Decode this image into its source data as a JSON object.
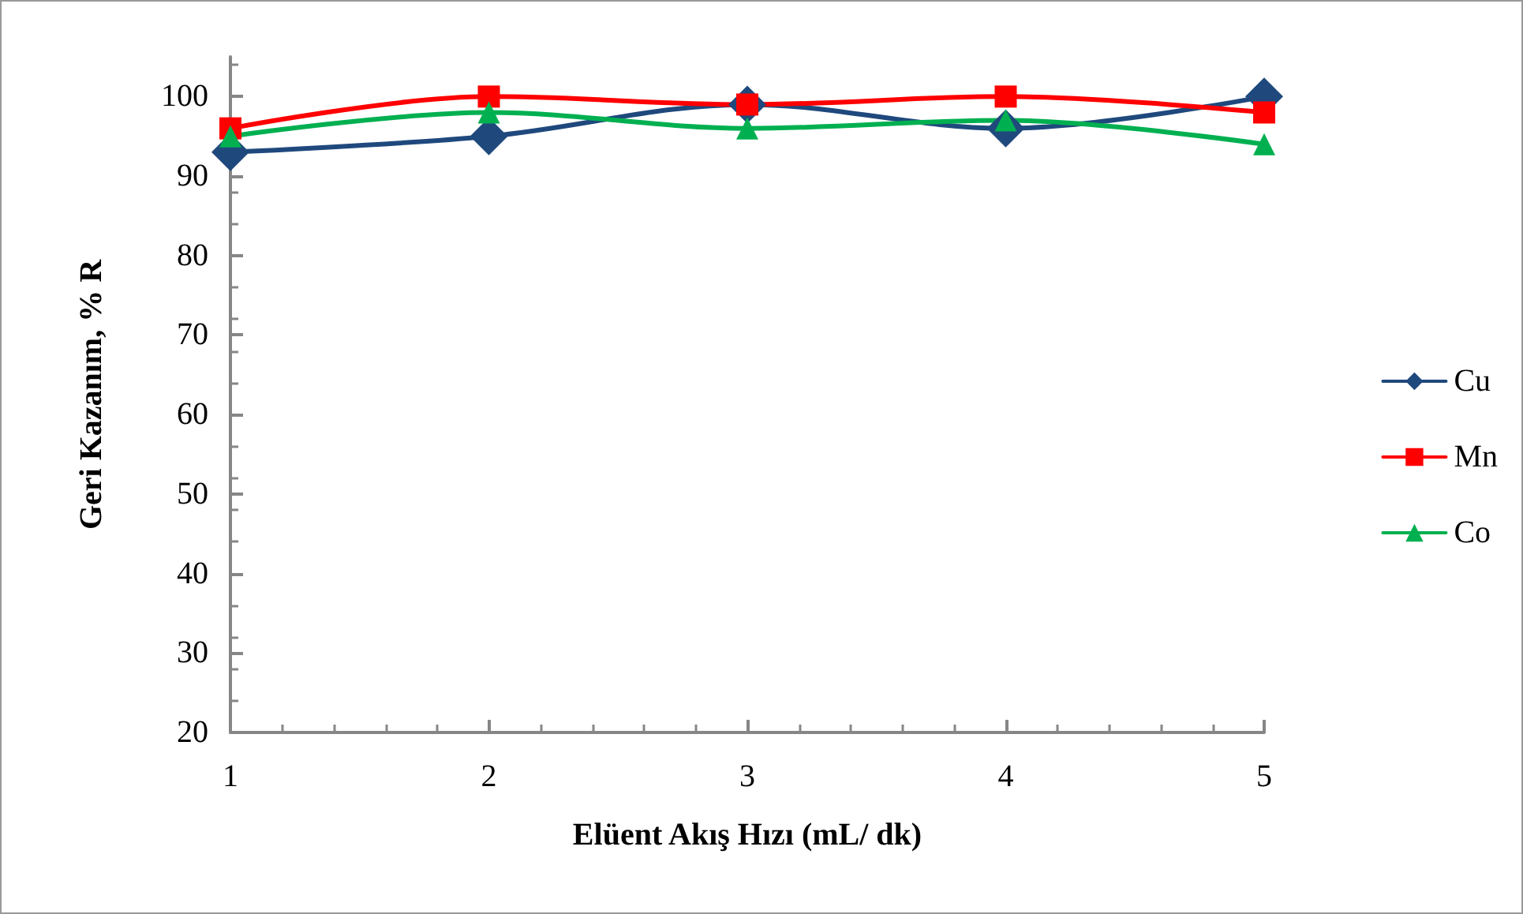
{
  "chart_data": {
    "type": "line",
    "xlabel": "Elüent Akış Hızı (mL/ dk)",
    "ylabel": "Geri Kazanım, % R",
    "x": [
      1,
      2,
      3,
      4,
      5
    ],
    "xlim": [
      1,
      5
    ],
    "xticks": [
      1,
      2,
      3,
      4,
      5
    ],
    "ylim": [
      20,
      105
    ],
    "yticks": [
      20,
      30,
      40,
      50,
      60,
      70,
      80,
      90,
      100
    ],
    "series": [
      {
        "name": "Cu",
        "color": "#1f497d",
        "marker": "diamond",
        "values": [
          93,
          95,
          99,
          96,
          100
        ]
      },
      {
        "name": "Mn",
        "color": "#ff0000",
        "marker": "square",
        "values": [
          96,
          100,
          99,
          100,
          98
        ]
      },
      {
        "name": "Co",
        "color": "#00b050",
        "marker": "triangle",
        "values": [
          95,
          98,
          96,
          97,
          94
        ]
      }
    ],
    "legend": "right",
    "grid": false,
    "line_style": "solid"
  }
}
